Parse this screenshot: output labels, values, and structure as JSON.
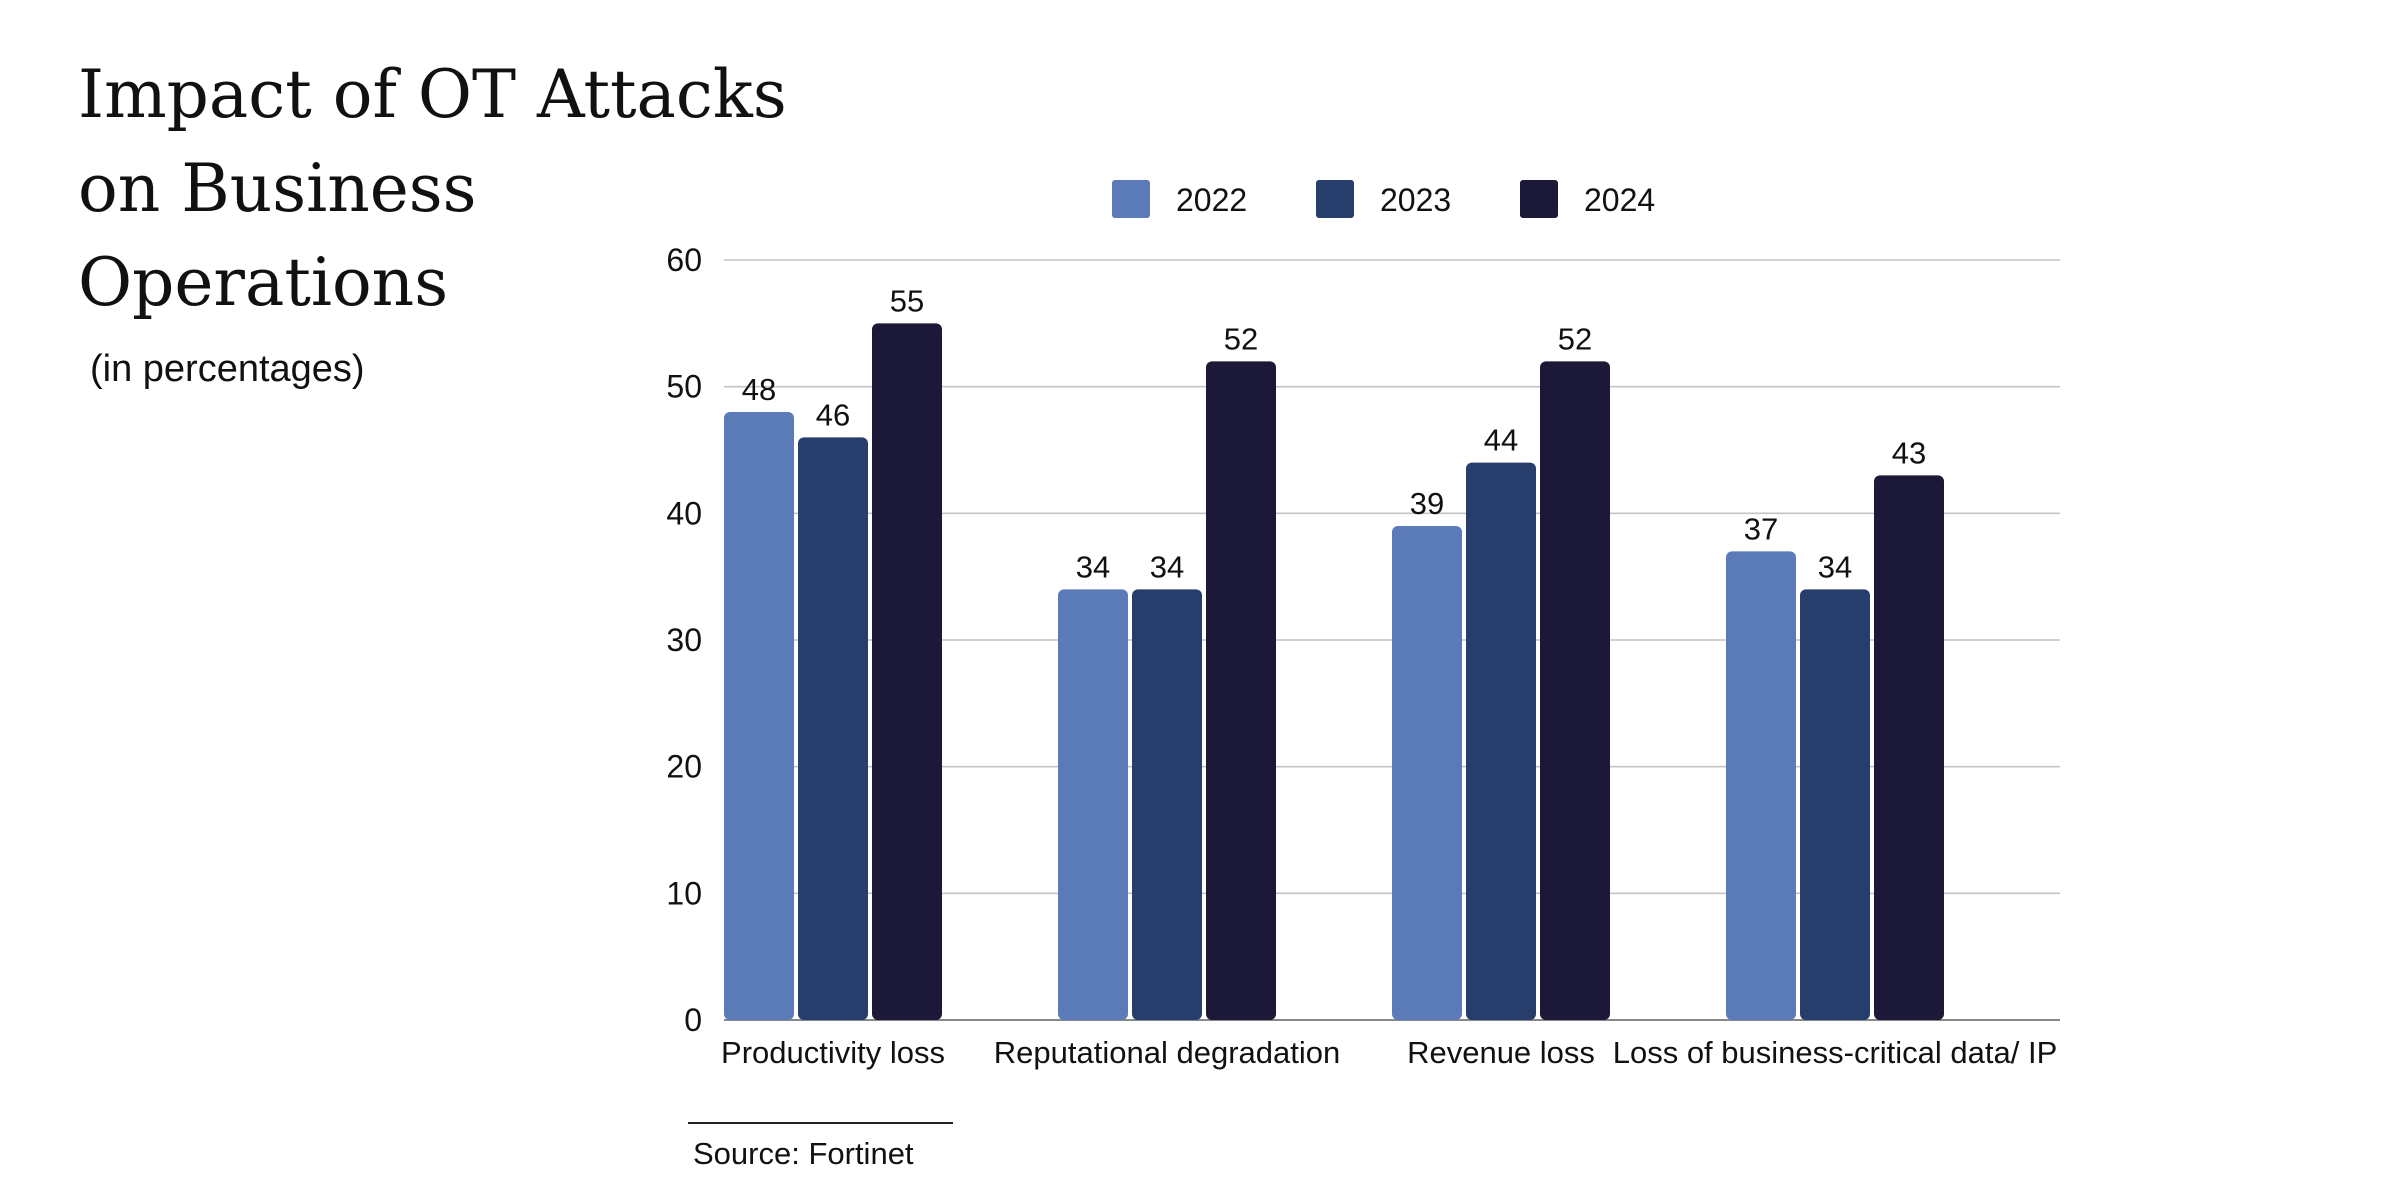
{
  "header": {
    "title": "Impact of OT Attacks on Business Operations",
    "subtitle": "(in percentages)"
  },
  "footer": {
    "source": "Source: Fortinet"
  },
  "colors": {
    "2022": "#5b7bb8",
    "2023": "#273e6c",
    "2024": "#1c1838",
    "grid": "#c4c4c4",
    "text": "#111111"
  },
  "chart_data": {
    "type": "bar",
    "title": "Impact of OT Attacks on Business Operations",
    "subtitle": "(in percentages)",
    "xlabel": "",
    "ylabel": "",
    "categories": [
      "Productivity loss",
      "Reputational degradation",
      "Revenue loss",
      "Loss of business-critical data/ IP"
    ],
    "series": [
      {
        "name": "2022",
        "values": [
          48,
          34,
          39,
          37
        ]
      },
      {
        "name": "2023",
        "values": [
          46,
          34,
          44,
          34
        ]
      },
      {
        "name": "2024",
        "values": [
          55,
          52,
          52,
          43
        ]
      }
    ],
    "ylim": [
      0,
      60
    ],
    "yticks": [
      0,
      10,
      20,
      30,
      40,
      50,
      60
    ],
    "grid": true,
    "legend_position": "top-center",
    "data_labels": true
  }
}
